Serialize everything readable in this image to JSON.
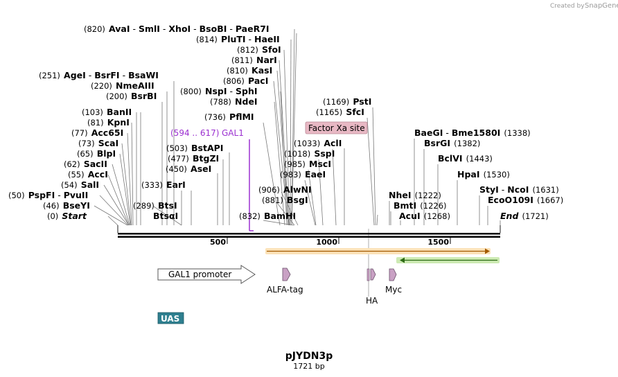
{
  "credit": {
    "prefix": "Created by",
    "brand": "SnapGene"
  },
  "plasmid": {
    "name": "pJYDN3p",
    "length_label": "1721 bp",
    "length": 1721
  },
  "ruler": {
    "ticks": [
      {
        "value": 500,
        "label": "500"
      },
      {
        "value": 1000,
        "label": "1000"
      },
      {
        "value": 1500,
        "label": "1500"
      }
    ]
  },
  "sites_left": [
    {
      "pos": "(820)",
      "names": [
        "AvaI",
        "SmlI",
        "XhoI",
        "BsoBI",
        "PaeR7I"
      ],
      "bp": 820
    },
    {
      "pos": "(814)",
      "names": [
        "PluTI",
        "HaeII"
      ],
      "bp": 814
    },
    {
      "pos": "(812)",
      "names": [
        "SfoI"
      ],
      "bp": 812
    },
    {
      "pos": "(811)",
      "names": [
        "NarI"
      ],
      "bp": 811
    },
    {
      "pos": "(810)",
      "names": [
        "KasI"
      ],
      "bp": 810
    },
    {
      "pos": "(806)",
      "names": [
        "PacI"
      ],
      "bp": 806
    },
    {
      "pos": "(800)",
      "names": [
        "NspI",
        "SphI"
      ],
      "bp": 800
    },
    {
      "pos": "(788)",
      "names": [
        "NdeI"
      ],
      "bp": 788
    },
    {
      "pos": "(736)",
      "names": [
        "PflMI"
      ],
      "bp": 736
    },
    {
      "pos": "(251)",
      "names": [
        "AgeI",
        "BsrFI",
        "BsaWI"
      ],
      "bp": 251
    },
    {
      "pos": "(220)",
      "names": [
        "NmeAIII"
      ],
      "bp": 220
    },
    {
      "pos": "(200)",
      "names": [
        "BsrBI"
      ],
      "bp": 200
    },
    {
      "pos": "(103)",
      "names": [
        "BanII"
      ],
      "bp": 103
    },
    {
      "pos": "(81)",
      "names": [
        "KpnI"
      ],
      "bp": 81
    },
    {
      "pos": "(77)",
      "names": [
        "Acc65I"
      ],
      "bp": 77
    },
    {
      "pos": "(73)",
      "names": [
        "ScaI"
      ],
      "bp": 73
    },
    {
      "pos": "(65)",
      "names": [
        "BlpI"
      ],
      "bp": 65
    },
    {
      "pos": "(62)",
      "names": [
        "SacII"
      ],
      "bp": 62
    },
    {
      "pos": "(55)",
      "names": [
        "AccI"
      ],
      "bp": 55
    },
    {
      "pos": "(54)",
      "names": [
        "SalI"
      ],
      "bp": 54
    },
    {
      "pos": "(50)",
      "names": [
        "PspFI",
        "PvuII"
      ],
      "bp": 50
    },
    {
      "pos": "(46)",
      "names": [
        "BseYI"
      ],
      "bp": 46
    },
    {
      "pos": "(0)",
      "names": [
        "Start"
      ],
      "bp": 0,
      "italic": true
    },
    {
      "pos": "(503)",
      "names": [
        "BstAPI"
      ],
      "bp": 503
    },
    {
      "pos": "(477)",
      "names": [
        "BtgZI"
      ],
      "bp": 477
    },
    {
      "pos": "(450)",
      "names": [
        "AseI"
      ],
      "bp": 450
    },
    {
      "pos": "(333)",
      "names": [
        "EarI"
      ],
      "bp": 333
    },
    {
      "pos": "(289)",
      "names": [
        "BtsI"
      ],
      "bp": 289
    },
    {
      "pos": "",
      "names": [
        "BtsαI"
      ],
      "bp": 280
    },
    {
      "pos": "(832)",
      "names": [
        "BamHI"
      ],
      "bp": 832
    },
    {
      "pos": "(881)",
      "names": [
        "BsgI"
      ],
      "bp": 881
    },
    {
      "pos": "(906)",
      "names": [
        "AlwNI"
      ],
      "bp": 906
    },
    {
      "pos": "(983)",
      "names": [
        "EaeI"
      ],
      "bp": 983
    },
    {
      "pos": "(985)",
      "names": [
        "MscI"
      ],
      "bp": 985
    },
    {
      "pos": "(1018)",
      "names": [
        "SspI"
      ],
      "bp": 1018
    },
    {
      "pos": "(1033)",
      "names": [
        "AclI"
      ],
      "bp": 1033
    },
    {
      "pos": "(1165)",
      "names": [
        "SfcI"
      ],
      "bp": 1165
    },
    {
      "pos": "(1169)",
      "names": [
        "PstI"
      ],
      "bp": 1169
    }
  ],
  "sites_right": [
    {
      "pos": "(1338)",
      "names": [
        "BaeGI",
        "Bme1580I"
      ],
      "bp": 1338
    },
    {
      "pos": "(1382)",
      "names": [
        "BsrGI"
      ],
      "bp": 1382
    },
    {
      "pos": "(1443)",
      "names": [
        "BclVI"
      ],
      "bp": 1443
    },
    {
      "pos": "(1530)",
      "names": [
        "HpaI"
      ],
      "bp": 1530
    },
    {
      "pos": "(1631)",
      "names": [
        "StyI",
        "NcoI"
      ],
      "bp": 1631
    },
    {
      "pos": "(1667)",
      "names": [
        "EcoO109I"
      ],
      "bp": 1667
    },
    {
      "pos": "(1222)",
      "names": [
        "NheI"
      ],
      "bp": 1222
    },
    {
      "pos": "(1226)",
      "names": [
        "BmtI"
      ],
      "bp": 1226
    },
    {
      "pos": "(1268)",
      "names": [
        "AcuI"
      ],
      "bp": 1268
    },
    {
      "pos": "(1721)",
      "names": [
        "End"
      ],
      "bp": 1721,
      "italic": true
    }
  ],
  "primer": {
    "range": "(594 .. 617)",
    "name": "GAL1"
  },
  "features": {
    "factor_xa": "Factor Xa site",
    "gal1_promoter": "GAL1 promoter",
    "alfa_tag": "ALFA-tag",
    "ha": "HA",
    "myc": "Myc",
    "uas": "UAS"
  },
  "colors": {
    "orange_orf": "#f0a030",
    "green_orf": "#6dbf3a",
    "uas": "#2e7f8f",
    "factor_xa": "#e8b8c4",
    "tag": "#c9a1c4",
    "primer": "#9b30d0"
  }
}
